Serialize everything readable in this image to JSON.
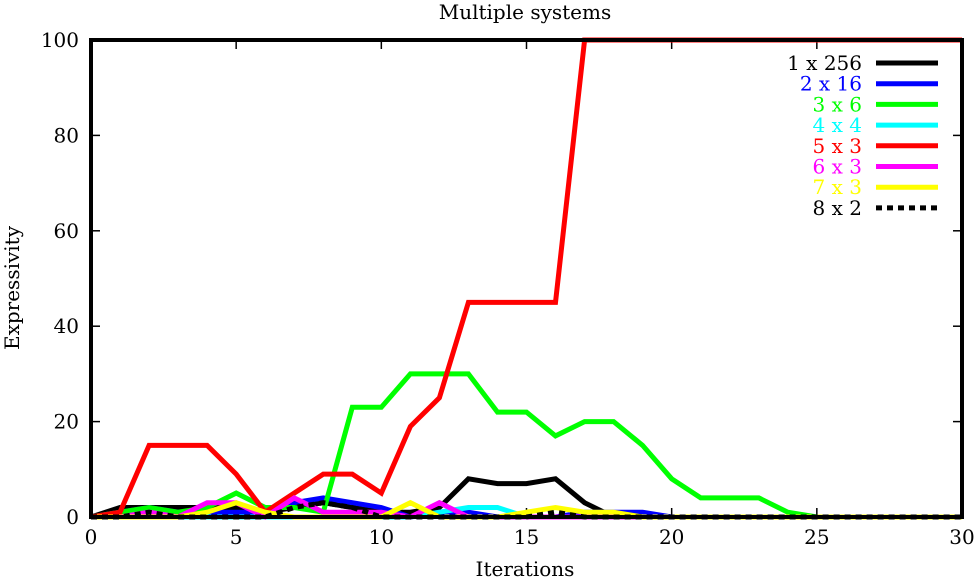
{
  "chart_data": {
    "type": "line",
    "title": "Multiple systems",
    "xlabel": "Iterations",
    "ylabel": "Expressivity",
    "xlim": [
      0,
      30
    ],
    "ylim": [
      0,
      100
    ],
    "xticks": [
      0,
      5,
      10,
      15,
      20,
      25,
      30
    ],
    "yticks": [
      0,
      20,
      40,
      60,
      80,
      100
    ],
    "grid": false,
    "legend_position": "top-right",
    "series": [
      {
        "name": "1 x 256",
        "color": "#000000",
        "dashed": false,
        "x": [
          0,
          1,
          2,
          3,
          4,
          5,
          6,
          7,
          8,
          9,
          10,
          11,
          12,
          13,
          14,
          15,
          16,
          17,
          18,
          19,
          20,
          21,
          22,
          23,
          24,
          25,
          26,
          27,
          28,
          29,
          30
        ],
        "values": [
          0,
          2,
          2,
          2,
          2,
          2,
          1,
          2,
          3,
          2,
          1,
          1,
          2,
          8,
          7,
          7,
          8,
          3,
          0,
          0,
          0,
          0,
          0,
          0,
          0,
          0,
          0,
          0,
          0,
          0,
          0
        ]
      },
      {
        "name": "2 x 16",
        "color": "#0000ff",
        "dashed": false,
        "x": [
          0,
          1,
          2,
          3,
          4,
          5,
          6,
          7,
          8,
          9,
          10,
          11,
          12,
          13,
          14,
          15,
          16,
          17,
          18,
          19,
          20,
          21,
          22,
          23,
          24,
          25,
          26,
          27,
          28,
          29,
          30
        ],
        "values": [
          0,
          1,
          2,
          1,
          1,
          1,
          1,
          3,
          4,
          3,
          2,
          0,
          1,
          1,
          0,
          0,
          0,
          1,
          1,
          1,
          0,
          0,
          0,
          0,
          0,
          0,
          0,
          0,
          0,
          0,
          0
        ]
      },
      {
        "name": "3 x 6",
        "color": "#00ff00",
        "dashed": false,
        "x": [
          0,
          1,
          2,
          3,
          4,
          5,
          6,
          7,
          8,
          9,
          10,
          11,
          12,
          13,
          14,
          15,
          16,
          17,
          18,
          19,
          20,
          21,
          22,
          23,
          24,
          25,
          26,
          27,
          28,
          29,
          30
        ],
        "values": [
          0,
          1,
          2,
          1,
          2,
          5,
          2,
          2,
          1,
          23,
          23,
          30,
          30,
          30,
          22,
          22,
          17,
          20,
          20,
          15,
          8,
          4,
          4,
          4,
          1,
          0,
          0,
          0,
          0,
          0,
          0
        ]
      },
      {
        "name": "4 x 4",
        "color": "#00ffff",
        "dashed": false,
        "x": [
          0,
          1,
          2,
          3,
          4,
          5,
          6,
          7,
          8,
          9,
          10,
          11,
          12,
          13,
          14,
          15,
          16,
          17,
          18,
          19,
          20,
          21,
          22,
          23,
          24,
          25,
          26,
          27,
          28,
          29,
          30
        ],
        "values": [
          0,
          0,
          0,
          0,
          0,
          0,
          0,
          0,
          0,
          0,
          0,
          0,
          1,
          2,
          2,
          0,
          0,
          0,
          0,
          0,
          0,
          0,
          0,
          0,
          0,
          0,
          0,
          0,
          0,
          0,
          0
        ]
      },
      {
        "name": "5 x 3",
        "color": "#ff0000",
        "dashed": false,
        "x": [
          0,
          1,
          2,
          3,
          4,
          5,
          6,
          7,
          8,
          9,
          10,
          11,
          12,
          13,
          14,
          15,
          16,
          17,
          18,
          19,
          20,
          21,
          22,
          23,
          24,
          25,
          26,
          27,
          28,
          29,
          30
        ],
        "values": [
          0,
          1,
          15,
          15,
          15,
          9,
          1,
          5,
          9,
          9,
          5,
          19,
          25,
          45,
          45,
          45,
          45,
          100,
          100,
          100,
          100,
          100,
          100,
          100,
          100,
          100,
          100,
          100,
          100,
          100,
          100
        ]
      },
      {
        "name": "6 x 3",
        "color": "#ff00ff",
        "dashed": false,
        "x": [
          0,
          1,
          2,
          3,
          4,
          5,
          6,
          7,
          8,
          9,
          10,
          11,
          12,
          13,
          14,
          15,
          16,
          17,
          18,
          19,
          20,
          21,
          22,
          23,
          24,
          25,
          26,
          27,
          28,
          29,
          30
        ],
        "values": [
          0,
          0,
          1,
          0,
          3,
          3,
          0,
          4,
          1,
          1,
          1,
          0,
          3,
          0,
          0,
          0,
          0,
          0,
          0,
          0,
          0,
          0,
          0,
          0,
          0,
          0,
          0,
          0,
          0,
          0,
          0
        ]
      },
      {
        "name": "7 x 3",
        "color": "#ffff00",
        "dashed": false,
        "x": [
          0,
          1,
          2,
          3,
          4,
          5,
          6,
          7,
          8,
          9,
          10,
          11,
          12,
          13,
          14,
          15,
          16,
          17,
          18,
          19,
          20,
          21,
          22,
          23,
          24,
          25,
          26,
          27,
          28,
          29,
          30
        ],
        "values": [
          0,
          0,
          0,
          0,
          1,
          3,
          1,
          0,
          0,
          0,
          0,
          3,
          0,
          0,
          0,
          1,
          2,
          1,
          1,
          0,
          0,
          0,
          0,
          0,
          0,
          0,
          0,
          0,
          0,
          0,
          0
        ]
      },
      {
        "name": "8 x 2",
        "color": "#000000",
        "dashed": true,
        "x": [
          0,
          1,
          2,
          3,
          4,
          5,
          6,
          7,
          8,
          9,
          10,
          11,
          12,
          13,
          14,
          15,
          16,
          17,
          18,
          19,
          20,
          21,
          22,
          23,
          24,
          25,
          26,
          27,
          28,
          29,
          30
        ],
        "values": [
          0,
          0,
          1,
          0,
          0,
          0,
          0,
          2,
          3,
          2,
          0,
          0,
          0,
          0,
          0,
          0,
          1,
          0,
          0,
          0,
          0,
          0,
          0,
          0,
          0,
          0,
          0,
          0,
          0,
          0,
          0
        ]
      }
    ]
  }
}
